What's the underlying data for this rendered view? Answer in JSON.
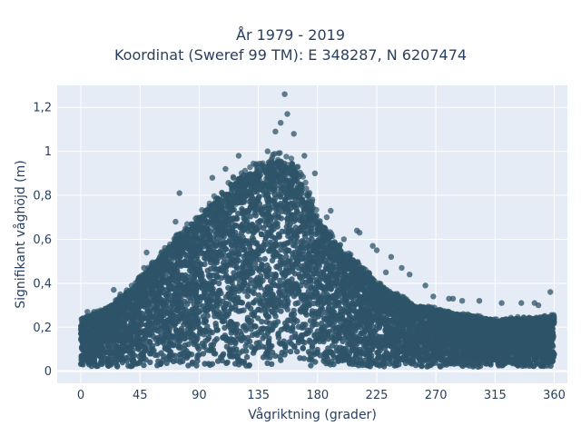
{
  "chart_data": {
    "type": "scatter",
    "title_line1": "År 1979 - 2019",
    "title_line2": "Koordinat (Sweref 99 TM): E 348287, N 6207474",
    "xlabel": "Vågriktning (grader)",
    "ylabel": "Signifikant våghöjd (m)",
    "xlim": [
      -18,
      370
    ],
    "ylim": [
      -0.055,
      1.3
    ],
    "x_ticks": [
      {
        "value": 0,
        "label": "0"
      },
      {
        "value": 45,
        "label": "45"
      },
      {
        "value": 90,
        "label": "90"
      },
      {
        "value": 135,
        "label": "135"
      },
      {
        "value": 180,
        "label": "180"
      },
      {
        "value": 225,
        "label": "225"
      },
      {
        "value": 270,
        "label": "270"
      },
      {
        "value": 315,
        "label": "315"
      },
      {
        "value": 360,
        "label": "360"
      }
    ],
    "y_ticks": [
      {
        "value": 0,
        "label": "0"
      },
      {
        "value": 0.2,
        "label": "0,2"
      },
      {
        "value": 0.4,
        "label": "0,4"
      },
      {
        "value": 0.6,
        "label": "0,6"
      },
      {
        "value": 0.8,
        "label": "0,8"
      },
      {
        "value": 1.0,
        "label": "1"
      },
      {
        "value": 1.2,
        "label": "1,2"
      }
    ],
    "grid": true,
    "colors": {
      "marker": "#2e5468",
      "plot_bg": "#e5ecf6",
      "grid": "#ffffff"
    },
    "envelope": [
      [
        0,
        0.24
      ],
      [
        15,
        0.27
      ],
      [
        30,
        0.33
      ],
      [
        45,
        0.42
      ],
      [
        60,
        0.52
      ],
      [
        75,
        0.62
      ],
      [
        90,
        0.7
      ],
      [
        105,
        0.8
      ],
      [
        120,
        0.88
      ],
      [
        135,
        0.93
      ],
      [
        150,
        0.97
      ],
      [
        160,
        0.95
      ],
      [
        170,
        0.85
      ],
      [
        180,
        0.7
      ],
      [
        195,
        0.57
      ],
      [
        210,
        0.5
      ],
      [
        225,
        0.4
      ],
      [
        240,
        0.35
      ],
      [
        255,
        0.3
      ],
      [
        270,
        0.28
      ],
      [
        285,
        0.26
      ],
      [
        300,
        0.25
      ],
      [
        315,
        0.23
      ],
      [
        330,
        0.24
      ],
      [
        345,
        0.24
      ],
      [
        360,
        0.25
      ]
    ],
    "outliers": [
      [
        155,
        1.26
      ],
      [
        157,
        1.17
      ],
      [
        152,
        1.13
      ],
      [
        148,
        1.09
      ],
      [
        162,
        1.08
      ],
      [
        142,
        1.0
      ],
      [
        170,
        0.98
      ],
      [
        120,
        0.98
      ],
      [
        110,
        0.92
      ],
      [
        100,
        0.88
      ],
      [
        75,
        0.81
      ],
      [
        72,
        0.68
      ],
      [
        165,
        0.93
      ],
      [
        178,
        0.9
      ],
      [
        190,
        0.73
      ],
      [
        187,
        0.7
      ],
      [
        210,
        0.64
      ],
      [
        212,
        0.63
      ],
      [
        222,
        0.57
      ],
      [
        225,
        0.55
      ],
      [
        236,
        0.52
      ],
      [
        244,
        0.47
      ],
      [
        250,
        0.44
      ],
      [
        262,
        0.39
      ],
      [
        268,
        0.34
      ],
      [
        280,
        0.33
      ],
      [
        283,
        0.33
      ],
      [
        290,
        0.32
      ],
      [
        303,
        0.32
      ],
      [
        320,
        0.31
      ],
      [
        335,
        0.31
      ],
      [
        345,
        0.31
      ],
      [
        348,
        0.3
      ],
      [
        357,
        0.36
      ],
      [
        50,
        0.54
      ],
      [
        48,
        0.47
      ],
      [
        60,
        0.5
      ],
      [
        25,
        0.37
      ],
      [
        30,
        0.35
      ],
      [
        5,
        0.27
      ],
      [
        10,
        0.27
      ],
      [
        200,
        0.6
      ],
      [
        232,
        0.45
      ]
    ]
  }
}
